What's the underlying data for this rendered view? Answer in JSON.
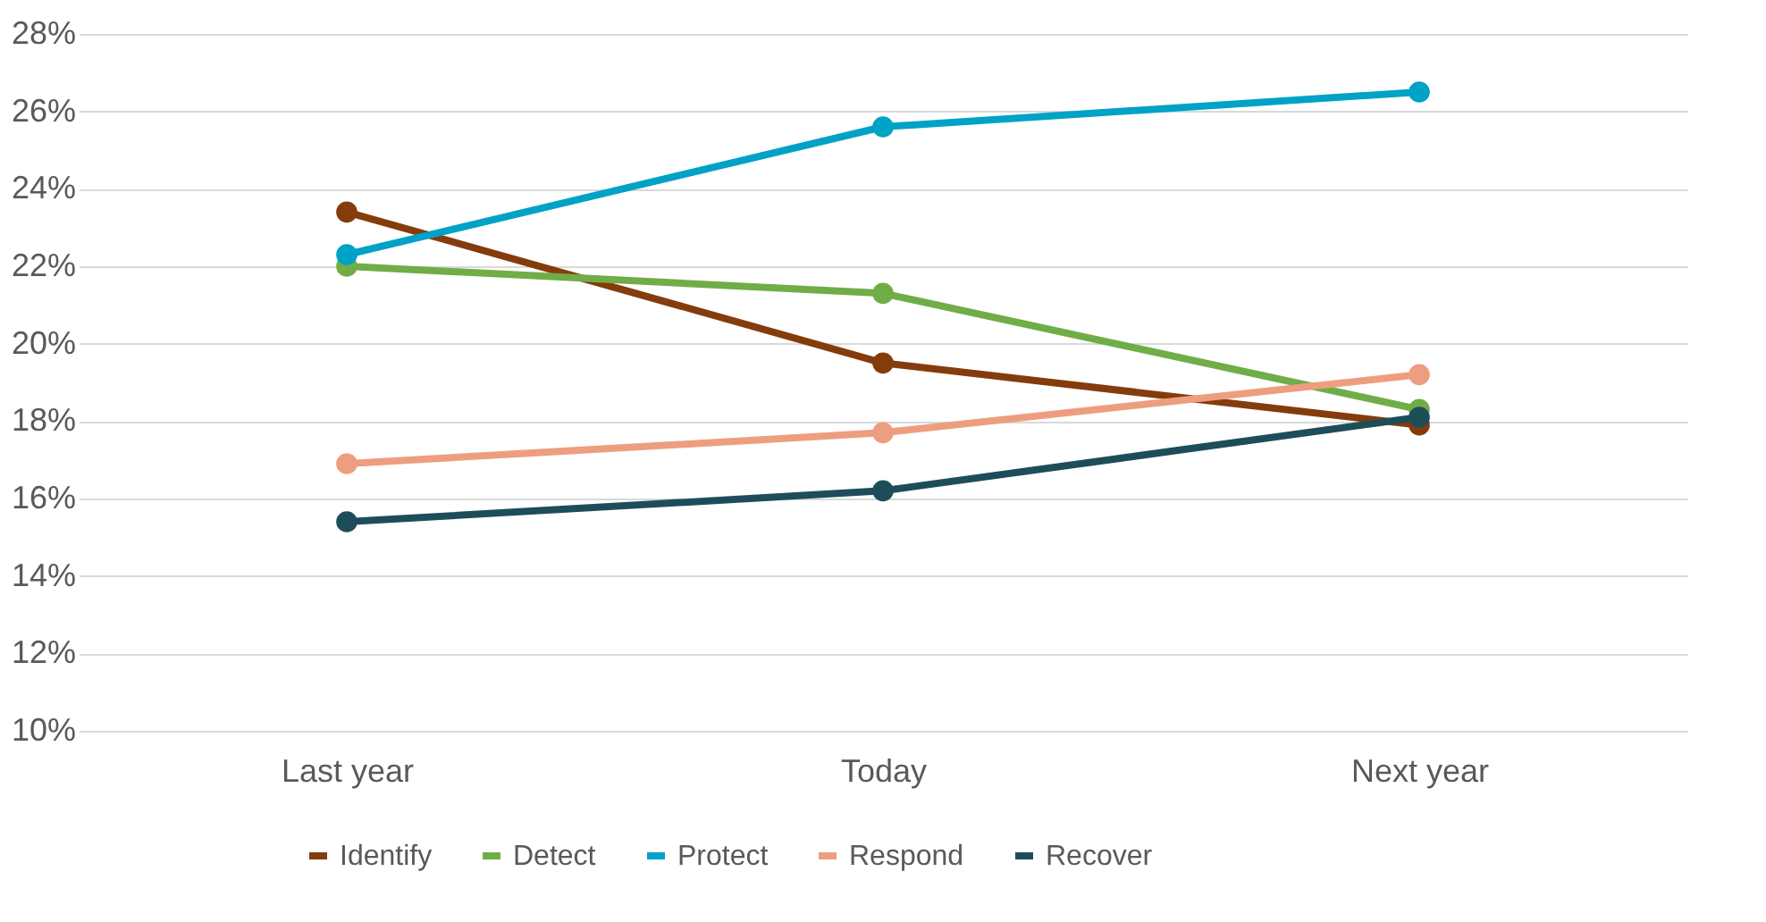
{
  "chart_data": {
    "type": "line",
    "categories": [
      "Last year",
      "Today",
      "Next year"
    ],
    "series": [
      {
        "name": "Identify",
        "color": "#843c0c",
        "values": [
          23.4,
          19.5,
          17.9
        ]
      },
      {
        "name": "Detect",
        "color": "#70ad47",
        "values": [
          22.0,
          21.3,
          18.3
        ]
      },
      {
        "name": "Protect",
        "color": "#00a2c6",
        "values": [
          22.3,
          25.6,
          26.5
        ]
      },
      {
        "name": "Respond",
        "color": "#ee9e80",
        "values": [
          16.9,
          17.7,
          19.2
        ]
      },
      {
        "name": "Recover",
        "color": "#1e4d5a",
        "values": [
          15.4,
          16.2,
          18.1
        ]
      }
    ],
    "ylim": [
      10,
      28
    ],
    "yticks": [
      {
        "value": 10,
        "label": "10%"
      },
      {
        "value": 12,
        "label": "12%"
      },
      {
        "value": 14,
        "label": "14%"
      },
      {
        "value": 16,
        "label": "16%"
      },
      {
        "value": 18,
        "label": "18%"
      },
      {
        "value": 20,
        "label": "20%"
      },
      {
        "value": 22,
        "label": "22%"
      },
      {
        "value": 24,
        "label": "24%"
      },
      {
        "value": 26,
        "label": "26%"
      },
      {
        "value": 28,
        "label": "28%"
      }
    ],
    "grid": "y",
    "legend": "bottom",
    "marker": "circle",
    "line_style": "solid"
  }
}
